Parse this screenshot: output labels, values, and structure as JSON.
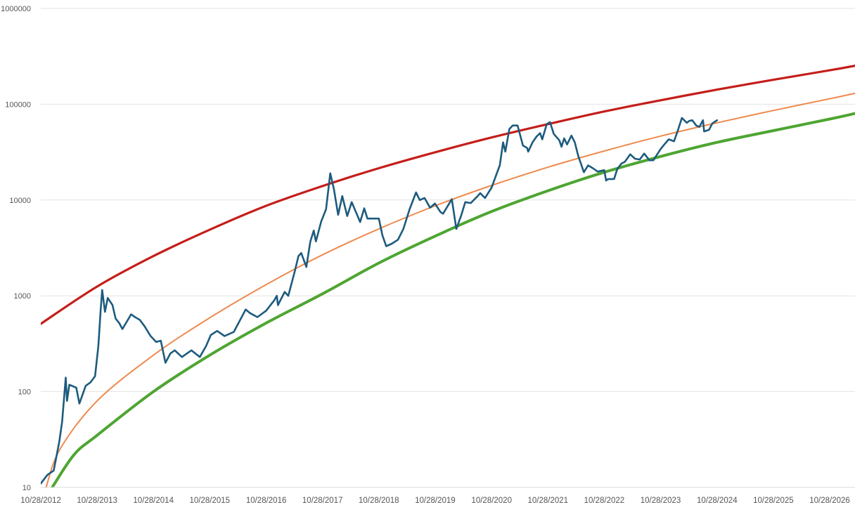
{
  "chart_data": {
    "type": "line",
    "title": "",
    "xlabel": "",
    "ylabel": "",
    "y_scale": "log",
    "ylim": [
      10,
      1000000
    ],
    "xlim": [
      "2012-10-28",
      "2027-04-10"
    ],
    "grid": true,
    "y_ticks": [
      10,
      100,
      1000,
      10000,
      100000,
      1000000
    ],
    "y_tick_labels": [
      "10",
      "100",
      "1000",
      "10000",
      "100000",
      "1000000"
    ],
    "x_ticks": [
      "2012-10-28",
      "2013-10-28",
      "2014-10-28",
      "2015-10-28",
      "2016-10-28",
      "2017-10-28",
      "2018-10-28",
      "2019-10-28",
      "2020-10-28",
      "2021-10-28",
      "2022-10-28",
      "2023-10-28",
      "2024-10-28",
      "2025-10-28",
      "2026-10-28"
    ],
    "x_tick_labels": [
      "10/28/2012",
      "10/28/2013",
      "10/28/2014",
      "10/28/2015",
      "10/28/2016",
      "10/28/2017",
      "10/28/2018",
      "10/28/2019",
      "10/28/2020",
      "10/28/2021",
      "10/28/2022",
      "10/28/2023",
      "10/28/2024",
      "10/28/2025",
      "10/28/2026"
    ],
    "series": [
      {
        "color": "#c41e1a",
        "x": [
          "2012-10-28",
          "2013-10-28",
          "2014-10-28",
          "2015-10-28",
          "2016-10-28",
          "2017-10-28",
          "2018-10-28",
          "2019-10-28",
          "2020-10-28",
          "2021-10-28",
          "2022-10-28",
          "2023-10-28",
          "2024-10-28",
          "2025-10-28",
          "2026-10-28",
          "2027-04-10"
        ],
        "y": [
          510,
          1250,
          2600,
          4900,
          8700,
          14000,
          21500,
          31500,
          45000,
          62000,
          84000,
          110000,
          142000,
          180000,
          226000,
          252000
        ]
      },
      {
        "color": "#ee8a4e",
        "x": [
          "2012-12-01",
          "2013-03-01",
          "2013-10-28",
          "2014-10-28",
          "2015-10-28",
          "2016-10-28",
          "2017-10-28",
          "2018-10-28",
          "2019-10-28",
          "2020-10-28",
          "2021-10-28",
          "2022-10-28",
          "2023-10-28",
          "2024-10-28",
          "2025-10-28",
          "2026-10-28",
          "2027-04-10"
        ],
        "y": [
          10,
          25,
          80,
          240,
          590,
          1310,
          2680,
          5000,
          8700,
          14200,
          22000,
          32500,
          46500,
          64000,
          86000,
          114000,
          130000
        ]
      },
      {
        "color": "#4ea532",
        "x": [
          "2013-01-10",
          "2013-06-01",
          "2013-10-28",
          "2014-10-28",
          "2015-10-28",
          "2016-10-28",
          "2017-10-28",
          "2018-10-28",
          "2019-10-28",
          "2020-10-28",
          "2021-10-28",
          "2022-10-28",
          "2023-10-28",
          "2024-10-28",
          "2025-10-28",
          "2026-10-28",
          "2027-04-10"
        ],
        "y": [
          10,
          22,
          35,
          100,
          240,
          520,
          1050,
          2200,
          4200,
          7600,
          12500,
          19500,
          28500,
          40000,
          53000,
          70000,
          80000
        ]
      },
      {
        "color": "#1d5b7e",
        "x": [
          "2012-10-28",
          "2012-12-10",
          "2013-01-20",
          "2013-02-25",
          "2013-03-15",
          "2013-04-08",
          "2013-04-16",
          "2013-05-01",
          "2013-06-15",
          "2013-07-05",
          "2013-08-15",
          "2013-09-15",
          "2013-10-15",
          "2013-11-05",
          "2013-11-20",
          "2013-11-30",
          "2013-12-18",
          "2014-01-05",
          "2014-02-05",
          "2014-02-25",
          "2014-03-20",
          "2014-04-10",
          "2014-05-15",
          "2014-06-05",
          "2014-07-01",
          "2014-08-01",
          "2014-09-01",
          "2014-10-10",
          "2014-11-15",
          "2014-12-15",
          "2015-01-14",
          "2015-02-15",
          "2015-03-15",
          "2015-05-01",
          "2015-07-01",
          "2015-08-25",
          "2015-10-05",
          "2015-11-04",
          "2015-12-15",
          "2016-02-01",
          "2016-04-01",
          "2016-06-17",
          "2016-07-15",
          "2016-09-01",
          "2016-10-28",
          "2016-12-20",
          "2017-01-05",
          "2017-01-12",
          "2017-02-25",
          "2017-03-20",
          "2017-05-01",
          "2017-05-25",
          "2017-06-12",
          "2017-07-15",
          "2017-08-10",
          "2017-09-01",
          "2017-09-15",
          "2017-10-20",
          "2017-11-20",
          "2017-12-17",
          "2018-01-10",
          "2018-02-06",
          "2018-03-05",
          "2018-04-06",
          "2018-05-05",
          "2018-06-29",
          "2018-07-25",
          "2018-08-15",
          "2018-10-28",
          "2018-11-20",
          "2018-12-15",
          "2019-01-20",
          "2019-03-01",
          "2019-04-05",
          "2019-05-15",
          "2019-06-26",
          "2019-07-20",
          "2019-08-20",
          "2019-09-25",
          "2019-10-26",
          "2019-12-01",
          "2019-12-18",
          "2020-02-13",
          "2020-03-13",
          "2020-04-15",
          "2020-05-10",
          "2020-06-15",
          "2020-07-27",
          "2020-08-15",
          "2020-09-15",
          "2020-10-28",
          "2020-11-25",
          "2020-12-20",
          "2021-01-10",
          "2021-01-25",
          "2021-02-20",
          "2021-03-13",
          "2021-04-14",
          "2021-05-19",
          "2021-06-15",
          "2021-06-22",
          "2021-07-20",
          "2021-08-15",
          "2021-09-07",
          "2021-09-21",
          "2021-10-20",
          "2021-11-10",
          "2021-12-05",
          "2022-01-10",
          "2022-01-24",
          "2022-02-10",
          "2022-03-01",
          "2022-03-29",
          "2022-04-20",
          "2022-05-12",
          "2022-06-18",
          "2022-07-15",
          "2022-08-15",
          "2022-09-15",
          "2022-10-28",
          "2022-11-09",
          "2022-11-21",
          "2022-12-31",
          "2023-01-20",
          "2023-02-16",
          "2023-03-10",
          "2023-04-14",
          "2023-05-15",
          "2023-06-15",
          "2023-07-14",
          "2023-08-17",
          "2023-09-11",
          "2023-10-28",
          "2023-11-15",
          "2023-12-20",
          "2024-01-23",
          "2024-02-15",
          "2024-03-14",
          "2024-04-15",
          "2024-05-01",
          "2024-05-20",
          "2024-06-15",
          "2024-07-05",
          "2024-07-29",
          "2024-08-05",
          "2024-09-06",
          "2024-09-27",
          "2024-10-28"
        ],
        "y": [
          11,
          13.5,
          15,
          30,
          48,
          140,
          80,
          118,
          110,
          75,
          115,
          125,
          145,
          300,
          700,
          1150,
          680,
          950,
          800,
          580,
          520,
          450,
          560,
          640,
          600,
          560,
          480,
          380,
          330,
          340,
          200,
          250,
          270,
          230,
          270,
          230,
          300,
          390,
          430,
          380,
          420,
          720,
          660,
          600,
          700,
          900,
          1000,
          800,
          1100,
          1000,
          1800,
          2600,
          2800,
          2000,
          3700,
          4800,
          3700,
          6000,
          8000,
          19000,
          13000,
          7000,
          11000,
          6800,
          9500,
          5900,
          8200,
          6400,
          6400,
          4300,
          3300,
          3500,
          3850,
          5000,
          8000,
          12000,
          10000,
          10500,
          8300,
          9200,
          7500,
          7200,
          10200,
          5000,
          7000,
          9500,
          9300,
          10900,
          11800,
          10500,
          13500,
          18000,
          23000,
          40000,
          32000,
          55000,
          60000,
          60000,
          37000,
          35000,
          32000,
          40000,
          46000,
          50000,
          43000,
          62000,
          65000,
          49000,
          42000,
          36000,
          44000,
          38000,
          47000,
          40000,
          29000,
          19500,
          23000,
          21500,
          19800,
          20500,
          16000,
          16500,
          16600,
          21000,
          24000,
          25000,
          30000,
          27000,
          26500,
          30500,
          26000,
          26000,
          34000,
          37000,
          43000,
          41000,
          52000,
          72000,
          64000,
          67000,
          68000,
          60000,
          58000,
          68000,
          52000,
          54000,
          63000,
          68000
        ]
      }
    ]
  }
}
